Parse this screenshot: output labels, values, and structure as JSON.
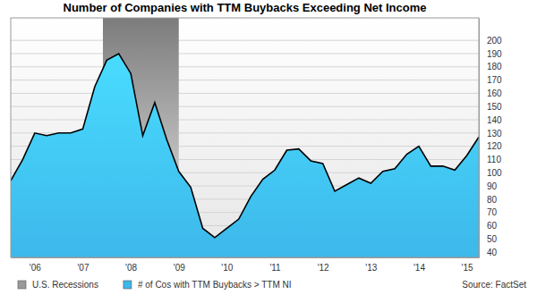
{
  "chart_data": {
    "type": "area",
    "title": "Number of Companies with TTM Buybacks Exceeding Net Income",
    "x": [
      2006.0,
      2006.25,
      2006.5,
      2006.75,
      2007.0,
      2007.25,
      2007.5,
      2007.75,
      2008.0,
      2008.25,
      2008.5,
      2008.75,
      2009.0,
      2009.25,
      2009.5,
      2009.75,
      2010.0,
      2010.25,
      2010.5,
      2010.75,
      2011.0,
      2011.25,
      2011.5,
      2011.75,
      2012.0,
      2012.25,
      2012.5,
      2012.75,
      2013.0,
      2013.25,
      2013.5,
      2013.75,
      2014.0,
      2014.25,
      2014.5,
      2014.75,
      2015.0,
      2015.25,
      2015.5,
      2015.75
    ],
    "series": [
      {
        "name": "# of Cos with TTM Buybacks > TTM NI",
        "color": "#3db8ea",
        "values": [
          94,
          110,
          130,
          128,
          130,
          130,
          133,
          165,
          185,
          190,
          175,
          128,
          153,
          125,
          101,
          89,
          58,
          51,
          58,
          65,
          82,
          95,
          102,
          117,
          118,
          109,
          107,
          86,
          91,
          96,
          92,
          101,
          103,
          114,
          120,
          105,
          105,
          102,
          113,
          127
        ]
      }
    ],
    "shaded": {
      "name": "U.S. Recessions",
      "color": "#9a9a9a",
      "ranges": [
        [
          2007.92,
          2009.5
        ]
      ]
    },
    "xlim": [
      2006.0,
      2015.75
    ],
    "xticks": [
      {
        "value": 2006.5,
        "label": "'06"
      },
      {
        "value": 2007.5,
        "label": "'07"
      },
      {
        "value": 2008.5,
        "label": "'08"
      },
      {
        "value": 2009.5,
        "label": "'09"
      },
      {
        "value": 2010.5,
        "label": "'10"
      },
      {
        "value": 2011.5,
        "label": "'11"
      },
      {
        "value": 2012.5,
        "label": "'12"
      },
      {
        "value": 2013.5,
        "label": "'13"
      },
      {
        "value": 2014.5,
        "label": "'14"
      },
      {
        "value": 2015.5,
        "label": "'15"
      }
    ],
    "ylim": [
      36,
      217
    ],
    "yticks": [
      40,
      50,
      60,
      70,
      80,
      90,
      100,
      110,
      120,
      130,
      140,
      150,
      160,
      170,
      180,
      190,
      200
    ],
    "grid": true,
    "legend": "bottom",
    "source": "Source: FactSet"
  }
}
